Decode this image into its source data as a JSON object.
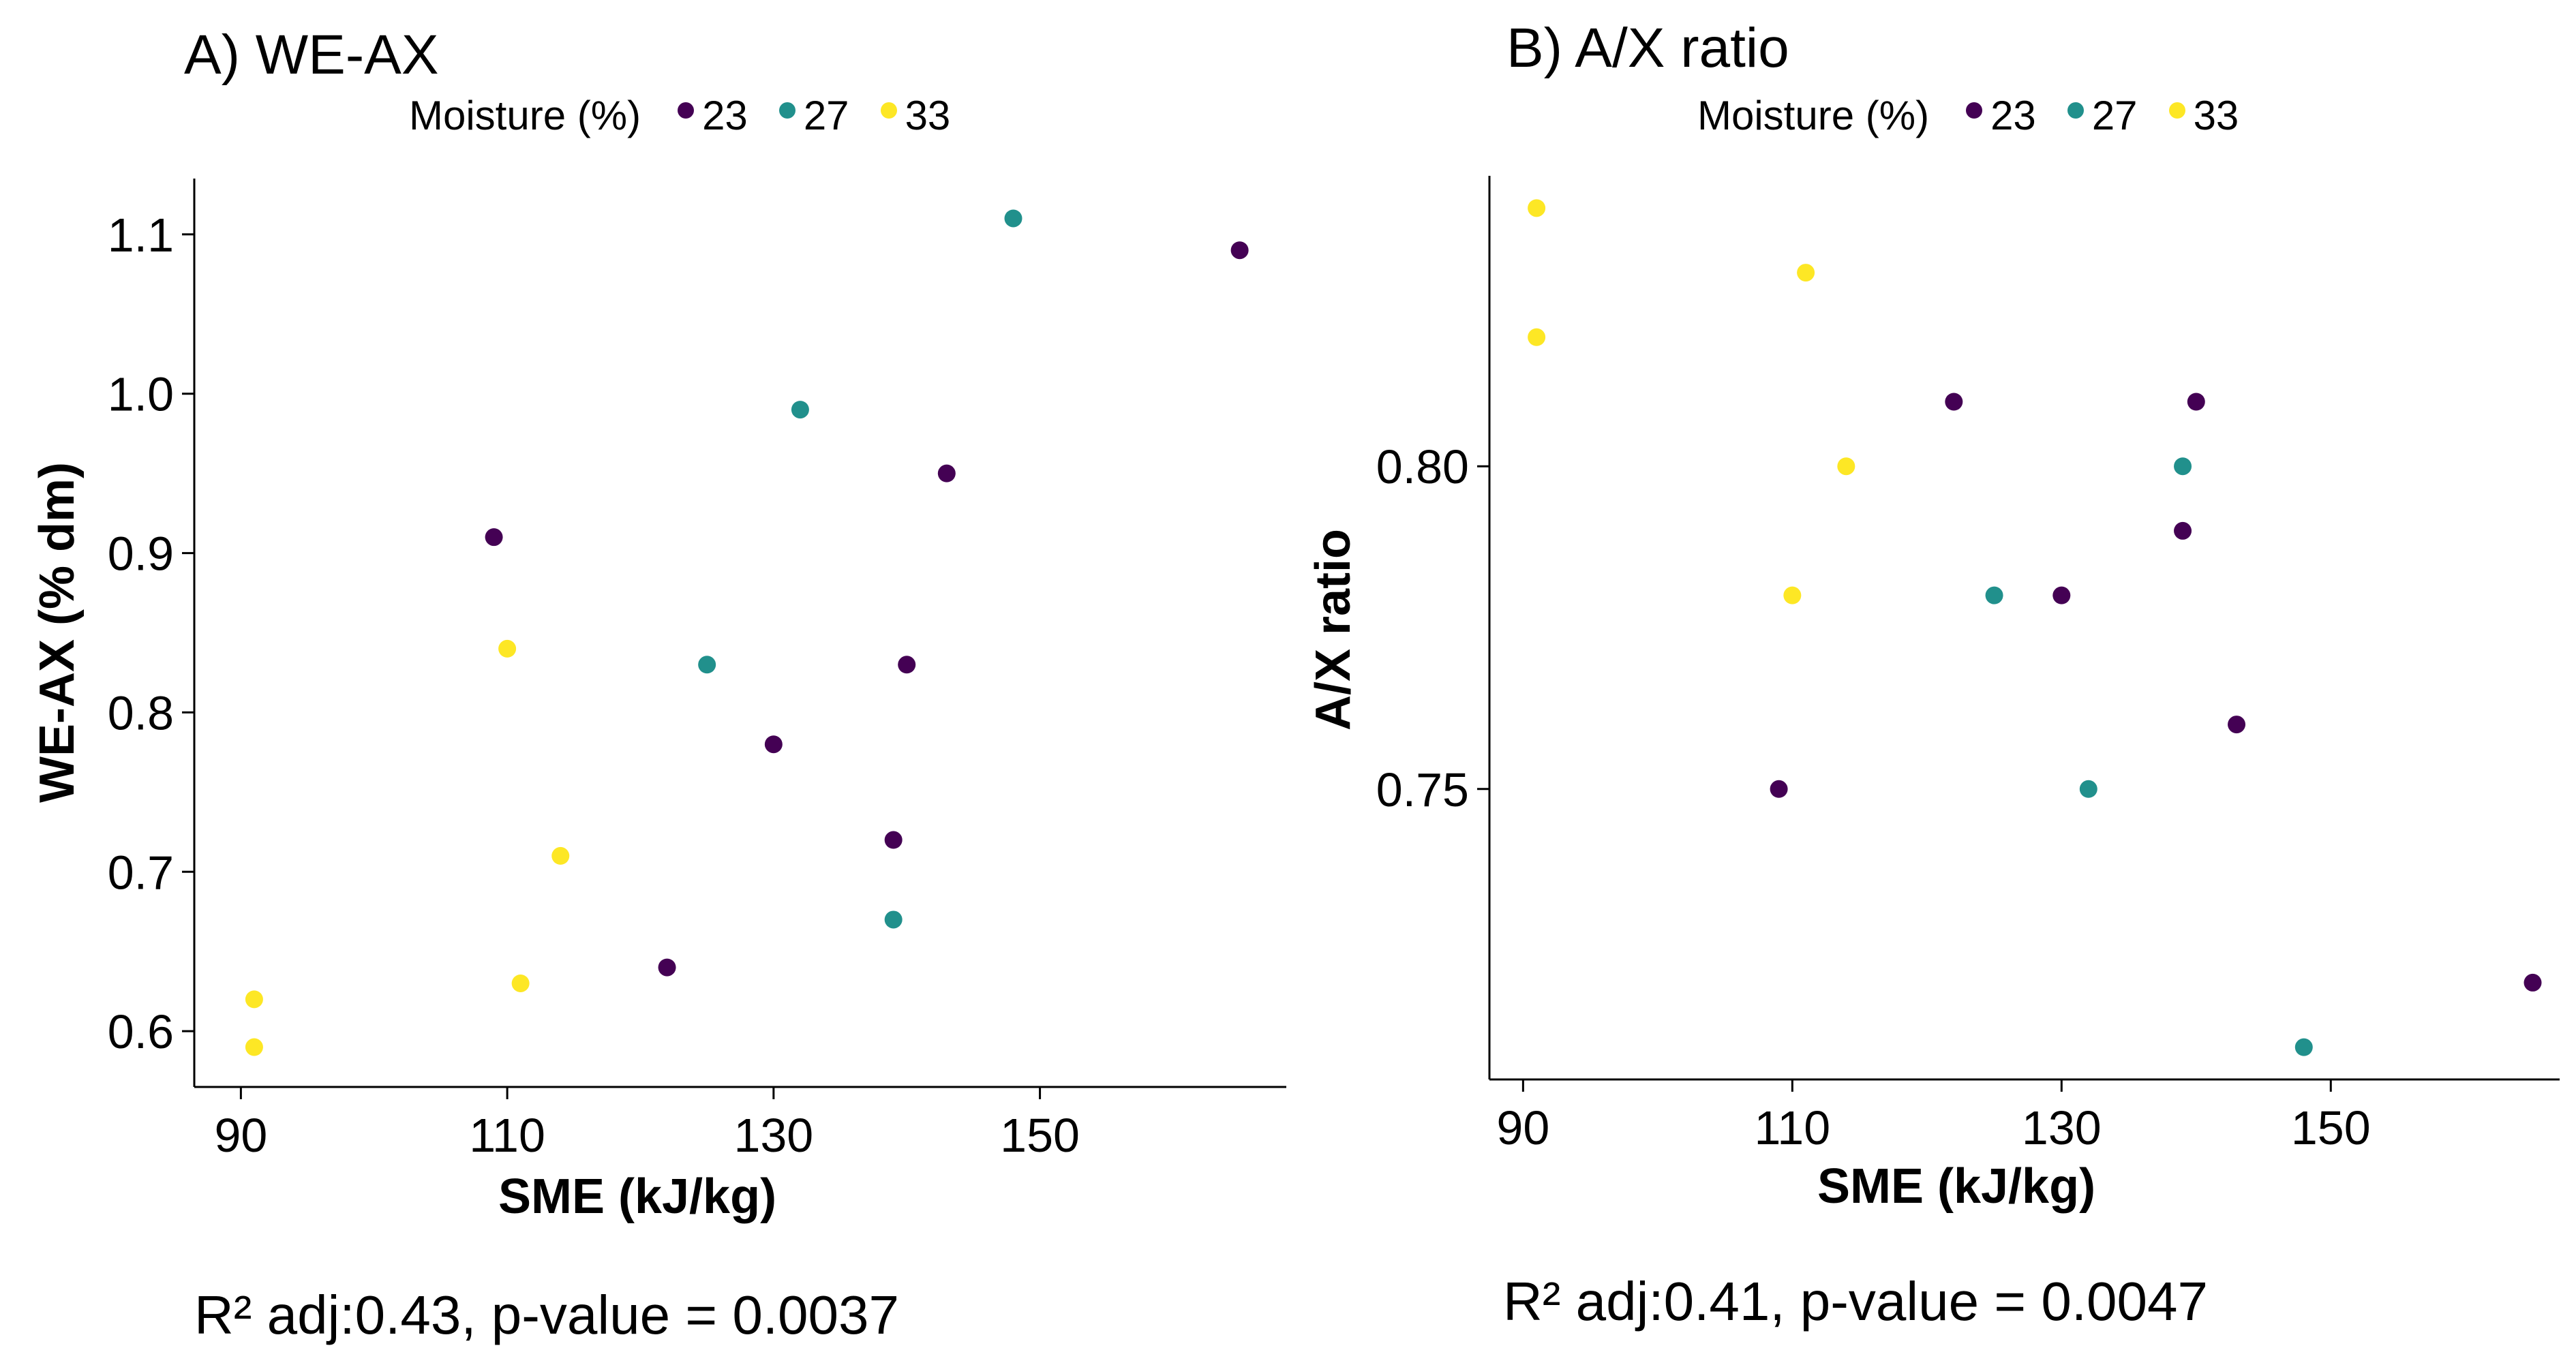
{
  "chart_data": [
    {
      "type": "scatter",
      "title": "A) WE-AX",
      "xlabel": "SME (kJ/kg)",
      "ylabel": "WE-AX (% dm)",
      "xlim": [
        86.5,
        168.5
      ],
      "ylim": [
        0.565,
        1.135
      ],
      "xticks": [
        90,
        110,
        130,
        150
      ],
      "yticks": [
        0.6,
        0.7,
        0.8,
        0.9,
        1.0,
        1.1
      ],
      "ytick_labels": [
        "0.6",
        "0.7",
        "0.8",
        "0.9",
        "1.0",
        "1.1"
      ],
      "legend_title": "Moisture (%)",
      "legend_placement": "top",
      "stats_text": "R² adj:0.43, p-value = 0.0037",
      "series": [
        {
          "name": "23",
          "color": "#440154",
          "points": [
            [
              109,
              0.91
            ],
            [
              122,
              0.64
            ],
            [
              130,
              0.78
            ],
            [
              139,
              0.72
            ],
            [
              140,
              0.83
            ],
            [
              143,
              0.95
            ],
            [
              165,
              1.09
            ]
          ]
        },
        {
          "name": "27",
          "color": "#21908C",
          "points": [
            [
              125,
              0.83
            ],
            [
              132,
              0.99
            ],
            [
              139,
              0.67
            ],
            [
              148,
              1.11
            ]
          ]
        },
        {
          "name": "33",
          "color": "#FDE725",
          "points": [
            [
              91,
              0.62
            ],
            [
              91,
              0.59
            ],
            [
              110,
              0.84
            ],
            [
              111,
              0.63
            ],
            [
              114,
              0.71
            ]
          ]
        }
      ]
    },
    {
      "type": "scatter",
      "title": "B) A/X ratio",
      "xlabel": "SME (kJ/kg)",
      "ylabel": "A/X ratio",
      "xlim": [
        87.5,
        167
      ],
      "ylim": [
        0.705,
        0.845
      ],
      "xticks": [
        90,
        110,
        130,
        150
      ],
      "yticks": [
        0.75,
        0.8
      ],
      "ytick_labels": [
        "0.75",
        "0.80"
      ],
      "legend_title": "Moisture (%)",
      "legend_placement": "top",
      "stats_text": "R² adj:0.41, p-value = 0.0047",
      "series": [
        {
          "name": "23",
          "color": "#440154",
          "points": [
            [
              109,
              0.75
            ],
            [
              122,
              0.81
            ],
            [
              130,
              0.78
            ],
            [
              139,
              0.79
            ],
            [
              140,
              0.81
            ],
            [
              143,
              0.76
            ],
            [
              165,
              0.72
            ]
          ]
        },
        {
          "name": "27",
          "color": "#21908C",
          "points": [
            [
              125,
              0.78
            ],
            [
              132,
              0.75
            ],
            [
              139,
              0.8
            ],
            [
              148,
              0.71
            ]
          ]
        },
        {
          "name": "33",
          "color": "#FDE725",
          "points": [
            [
              91,
              0.84
            ],
            [
              91,
              0.82
            ],
            [
              110,
              0.78
            ],
            [
              111,
              0.83
            ],
            [
              114,
              0.8
            ]
          ]
        }
      ]
    }
  ]
}
